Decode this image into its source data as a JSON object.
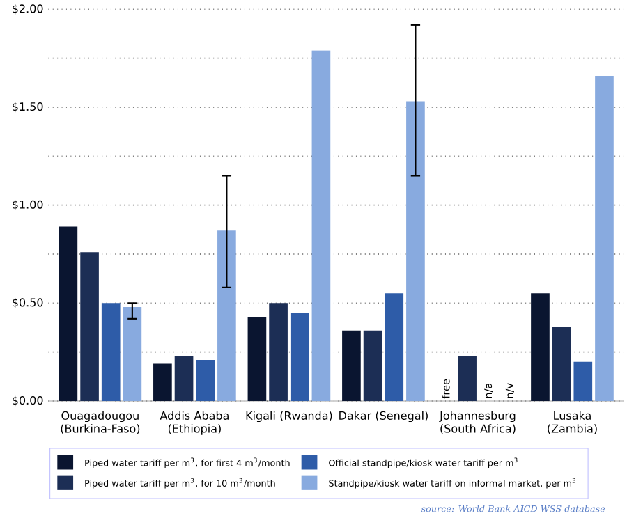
{
  "chart_data": {
    "type": "bar",
    "categories": [
      "Ouagadougou (Burkina-Faso)",
      "Addis Ababa (Ethiopia)",
      "Kigali (Rwanda)",
      "Dakar (Senegal)",
      "Johannesburg (South Africa)",
      "Lusaka (Zambia)"
    ],
    "series": [
      {
        "name": "Piped water tariff per m$^{3}$, for first 4 m$^{3}$/month",
        "color": "#0a1530",
        "values": [
          0.89,
          0.19,
          0.43,
          0.36,
          null,
          0.55
        ],
        "value_labels": [
          null,
          null,
          null,
          null,
          "free",
          null
        ]
      },
      {
        "name": "Piped water tariff per m$^{3}$, for 10 m$^{3}$/month",
        "color": "#1c2e55",
        "values": [
          0.76,
          0.23,
          0.5,
          0.36,
          0.23,
          0.38
        ]
      },
      {
        "name": "Official standpipe/kiosk water tariff per m$^{3}$",
        "color": "#2e5ca8",
        "values": [
          0.5,
          0.21,
          0.45,
          0.55,
          null,
          0.2
        ],
        "value_labels": [
          null,
          null,
          null,
          null,
          "n/a",
          null
        ]
      },
      {
        "name": "Standpipe/kiosk water tariff on informal market, per m$^{3}$",
        "color": "#88aadf",
        "values": [
          0.48,
          0.87,
          1.79,
          1.53,
          null,
          1.66
        ],
        "value_labels": [
          null,
          null,
          null,
          null,
          "n/v",
          null
        ],
        "errors": [
          [
            0.42,
            0.5
          ],
          [
            0.58,
            1.15
          ],
          null,
          [
            1.15,
            1.92
          ],
          null,
          null
        ]
      }
    ],
    "ylim": [
      0,
      2
    ],
    "yticks": [
      {
        "value": 0,
        "label": "$0.00"
      },
      {
        "value": 0.25,
        "label": null
      },
      {
        "value": 0.5,
        "label": "$0.50"
      },
      {
        "value": 0.75,
        "label": null
      },
      {
        "value": 1,
        "label": "$1.00"
      },
      {
        "value": 1.25,
        "label": null
      },
      {
        "value": 1.5,
        "label": "$1.50"
      },
      {
        "value": 1.75,
        "label": null
      },
      {
        "value": 2,
        "label": "$2.00"
      }
    ],
    "grid": "y",
    "legend": "bottom",
    "annotations": [
      "source: World Bank AICD WSS database"
    ]
  }
}
